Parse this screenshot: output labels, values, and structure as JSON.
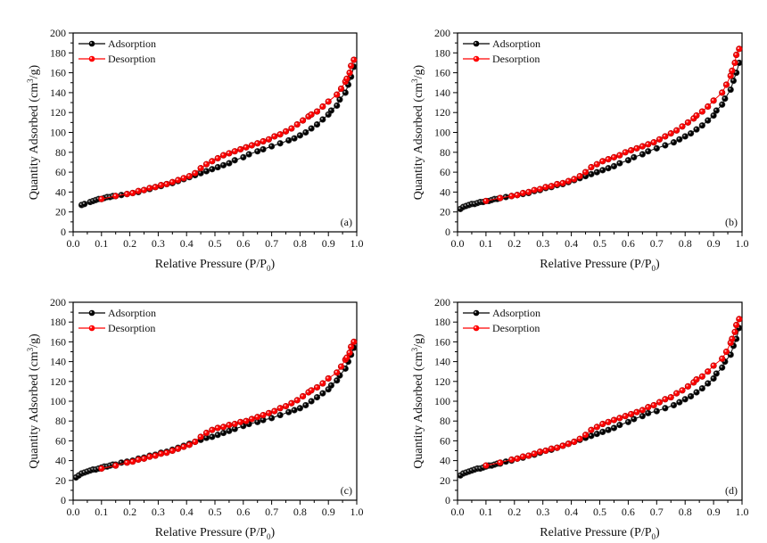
{
  "figure": {
    "panel_count": 4
  },
  "chart_data": [
    {
      "type": "line",
      "panel_label": "(a)",
      "title": "",
      "xlabel": "Relative Pressure (P/P0)",
      "xlabel_main": "Relative Pressure (P/P",
      "xlabel_sub": "0",
      "xlabel_end": ")",
      "ylabel": "Quantity Adsorbed (cm3/g)",
      "ylabel_main": "Quantity Adsorbed (cm",
      "ylabel_sup": "3",
      "ylabel_end": "/g)",
      "xlim": [
        0.0,
        1.0
      ],
      "ylim": [
        0,
        200
      ],
      "xticks": [
        "0.0",
        "0.1",
        "0.2",
        "0.3",
        "0.4",
        "0.5",
        "0.6",
        "0.7",
        "0.8",
        "0.9",
        "1.0"
      ],
      "yticks": [
        "0",
        "20",
        "40",
        "60",
        "80",
        "100",
        "120",
        "140",
        "160",
        "180",
        "200"
      ],
      "grid": false,
      "legend_position": "top-left",
      "series": [
        {
          "name": "Adsorption",
          "color": "#000000",
          "x": [
            0.03,
            0.04,
            0.06,
            0.07,
            0.08,
            0.09,
            0.1,
            0.11,
            0.12,
            0.13,
            0.14,
            0.15,
            0.17,
            0.19,
            0.21,
            0.23,
            0.25,
            0.27,
            0.29,
            0.31,
            0.33,
            0.35,
            0.37,
            0.39,
            0.41,
            0.43,
            0.45,
            0.47,
            0.49,
            0.51,
            0.53,
            0.55,
            0.57,
            0.6,
            0.62,
            0.65,
            0.67,
            0.7,
            0.73,
            0.76,
            0.78,
            0.8,
            0.82,
            0.84,
            0.86,
            0.88,
            0.9,
            0.91,
            0.93,
            0.94,
            0.96,
            0.97,
            0.98,
            0.99
          ],
          "y": [
            27,
            28,
            30,
            31,
            32,
            33,
            33,
            34,
            35,
            35,
            36,
            36,
            37,
            38,
            39,
            40,
            42,
            43,
            45,
            46,
            48,
            49,
            51,
            53,
            55,
            57,
            59,
            61,
            63,
            65,
            67,
            69,
            72,
            75,
            78,
            81,
            83,
            86,
            89,
            92,
            94,
            97,
            100,
            104,
            108,
            113,
            118,
            122,
            127,
            133,
            140,
            148,
            156,
            166
          ]
        },
        {
          "name": "Desorption",
          "color": "#ff0000",
          "x": [
            0.1,
            0.15,
            0.19,
            0.21,
            0.23,
            0.25,
            0.27,
            0.29,
            0.31,
            0.33,
            0.35,
            0.37,
            0.39,
            0.41,
            0.43,
            0.45,
            0.47,
            0.49,
            0.51,
            0.53,
            0.55,
            0.57,
            0.59,
            0.61,
            0.63,
            0.65,
            0.67,
            0.69,
            0.71,
            0.73,
            0.75,
            0.77,
            0.79,
            0.81,
            0.83,
            0.84,
            0.86,
            0.88,
            0.9,
            0.93,
            0.945,
            0.96,
            0.965,
            0.975,
            0.98,
            0.99
          ],
          "y": [
            33,
            36,
            38,
            39,
            41,
            42,
            44,
            45,
            47,
            48,
            50,
            52,
            54,
            56,
            59,
            64,
            68,
            71,
            74,
            77,
            79,
            81,
            83,
            85,
            87,
            89,
            91,
            93,
            96,
            98,
            101,
            104,
            108,
            112,
            116,
            118,
            121,
            126,
            131,
            138,
            144,
            151,
            154,
            160,
            167,
            173
          ]
        }
      ]
    },
    {
      "type": "line",
      "panel_label": "(b)",
      "title": "",
      "xlabel": "Relative Pressure (P/P0)",
      "xlabel_main": "Relative Pressure (P/P",
      "xlabel_sub": "0",
      "xlabel_end": ")",
      "ylabel": "Quantity Adsorbed (cm3/g)",
      "ylabel_main": "Quantity Adsorbed (cm",
      "ylabel_sup": "3",
      "ylabel_end": "/g)",
      "xlim": [
        0.0,
        1.0
      ],
      "ylim": [
        0,
        200
      ],
      "xticks": [
        "0.0",
        "0.1",
        "0.2",
        "0.3",
        "0.4",
        "0.5",
        "0.6",
        "0.7",
        "0.8",
        "0.9",
        "1.0"
      ],
      "yticks": [
        "0",
        "20",
        "40",
        "60",
        "80",
        "100",
        "120",
        "140",
        "160",
        "180",
        "200"
      ],
      "grid": false,
      "legend_position": "top-left",
      "series": [
        {
          "name": "Adsorption",
          "color": "#000000",
          "x": [
            0.01,
            0.02,
            0.03,
            0.04,
            0.05,
            0.06,
            0.07,
            0.08,
            0.09,
            0.1,
            0.11,
            0.12,
            0.13,
            0.14,
            0.15,
            0.17,
            0.19,
            0.21,
            0.23,
            0.25,
            0.27,
            0.29,
            0.31,
            0.33,
            0.35,
            0.37,
            0.39,
            0.41,
            0.43,
            0.45,
            0.47,
            0.49,
            0.51,
            0.53,
            0.55,
            0.57,
            0.6,
            0.62,
            0.65,
            0.67,
            0.7,
            0.73,
            0.76,
            0.78,
            0.8,
            0.82,
            0.84,
            0.86,
            0.88,
            0.9,
            0.91,
            0.93,
            0.94,
            0.96,
            0.97,
            0.98,
            0.99
          ],
          "y": [
            23,
            25,
            26,
            27,
            28,
            28,
            29,
            30,
            30,
            31,
            31,
            32,
            33,
            33,
            34,
            35,
            36,
            37,
            38,
            39,
            41,
            42,
            44,
            45,
            47,
            48,
            50,
            52,
            54,
            56,
            58,
            60,
            62,
            64,
            66,
            69,
            72,
            75,
            78,
            81,
            84,
            87,
            90,
            93,
            96,
            99,
            103,
            107,
            112,
            117,
            122,
            128,
            134,
            143,
            152,
            160,
            170
          ]
        },
        {
          "name": "Desorption",
          "color": "#ff0000",
          "x": [
            0.1,
            0.15,
            0.19,
            0.21,
            0.23,
            0.25,
            0.27,
            0.29,
            0.31,
            0.33,
            0.35,
            0.37,
            0.39,
            0.41,
            0.43,
            0.45,
            0.47,
            0.49,
            0.51,
            0.53,
            0.55,
            0.57,
            0.59,
            0.61,
            0.63,
            0.65,
            0.67,
            0.69,
            0.71,
            0.73,
            0.75,
            0.77,
            0.79,
            0.81,
            0.83,
            0.84,
            0.86,
            0.88,
            0.9,
            0.93,
            0.945,
            0.96,
            0.965,
            0.975,
            0.98,
            0.99
          ],
          "y": [
            31,
            34,
            36,
            37,
            39,
            40,
            42,
            43,
            45,
            46,
            48,
            49,
            51,
            53,
            56,
            60,
            65,
            68,
            71,
            73,
            75,
            77,
            80,
            82,
            84,
            86,
            88,
            90,
            93,
            96,
            99,
            102,
            106,
            110,
            114,
            117,
            121,
            126,
            132,
            140,
            148,
            157,
            162,
            170,
            178,
            184
          ]
        }
      ]
    },
    {
      "type": "line",
      "panel_label": "(c)",
      "title": "",
      "xlabel": "Relative Pressure (P/P0)",
      "xlabel_main": "Relative Pressure (P/P",
      "xlabel_sub": "0",
      "xlabel_end": ")",
      "ylabel": "Quantity Adsorbed (cm3/g)",
      "ylabel_main": "Quantity Adsorbed (cm",
      "ylabel_sup": "3",
      "ylabel_end": "/g)",
      "xlim": [
        0.0,
        1.0
      ],
      "ylim": [
        0,
        200
      ],
      "xticks": [
        "0.0",
        "0.1",
        "0.2",
        "0.3",
        "0.4",
        "0.5",
        "0.6",
        "0.7",
        "0.8",
        "0.9",
        "1.0"
      ],
      "yticks": [
        "0",
        "20",
        "40",
        "60",
        "80",
        "100",
        "120",
        "140",
        "160",
        "180",
        "200"
      ],
      "grid": false,
      "legend_position": "top-left",
      "series": [
        {
          "name": "Adsorption",
          "color": "#000000",
          "x": [
            0.01,
            0.02,
            0.03,
            0.04,
            0.05,
            0.06,
            0.07,
            0.08,
            0.09,
            0.1,
            0.11,
            0.12,
            0.13,
            0.14,
            0.15,
            0.17,
            0.19,
            0.21,
            0.23,
            0.25,
            0.27,
            0.29,
            0.31,
            0.33,
            0.35,
            0.37,
            0.39,
            0.41,
            0.43,
            0.45,
            0.47,
            0.49,
            0.51,
            0.53,
            0.55,
            0.57,
            0.6,
            0.62,
            0.65,
            0.67,
            0.7,
            0.73,
            0.76,
            0.78,
            0.8,
            0.82,
            0.84,
            0.86,
            0.88,
            0.9,
            0.91,
            0.93,
            0.94,
            0.96,
            0.97,
            0.98,
            0.99
          ],
          "y": [
            23,
            25,
            27,
            28,
            29,
            30,
            31,
            31,
            32,
            33,
            34,
            34,
            35,
            36,
            36,
            38,
            39,
            40,
            42,
            43,
            45,
            46,
            48,
            49,
            51,
            53,
            55,
            57,
            59,
            61,
            63,
            64,
            66,
            68,
            70,
            72,
            75,
            77,
            79,
            81,
            83,
            86,
            89,
            91,
            93,
            96,
            100,
            104,
            108,
            112,
            116,
            121,
            126,
            133,
            140,
            147,
            154
          ]
        },
        {
          "name": "Desorption",
          "color": "#ff0000",
          "x": [
            0.1,
            0.15,
            0.19,
            0.21,
            0.23,
            0.25,
            0.27,
            0.29,
            0.31,
            0.33,
            0.35,
            0.37,
            0.39,
            0.41,
            0.43,
            0.45,
            0.47,
            0.49,
            0.51,
            0.53,
            0.55,
            0.57,
            0.59,
            0.61,
            0.63,
            0.65,
            0.67,
            0.69,
            0.71,
            0.73,
            0.75,
            0.77,
            0.79,
            0.81,
            0.83,
            0.84,
            0.86,
            0.88,
            0.9,
            0.93,
            0.945,
            0.96,
            0.965,
            0.975,
            0.98,
            0.99
          ],
          "y": [
            32,
            35,
            38,
            39,
            41,
            42,
            44,
            45,
            47,
            48,
            50,
            52,
            54,
            56,
            59,
            64,
            68,
            71,
            73,
            74,
            76,
            77,
            79,
            80,
            82,
            84,
            86,
            88,
            90,
            93,
            95,
            98,
            101,
            105,
            109,
            111,
            114,
            118,
            123,
            129,
            135,
            142,
            144,
            149,
            155,
            160
          ]
        }
      ]
    },
    {
      "type": "line",
      "panel_label": "(d)",
      "title": "",
      "xlabel": "Relative Pressure (P/P0)",
      "xlabel_main": "Relative Pressure (P/P",
      "xlabel_sub": "0",
      "xlabel_end": ")",
      "ylabel": "Quantity Adsorbed (cm3/g)",
      "ylabel_main": "Quantity Adsorbed (cm",
      "ylabel_sup": "3",
      "ylabel_end": "/g)",
      "xlim": [
        0.0,
        1.0
      ],
      "ylim": [
        0,
        200
      ],
      "xticks": [
        "0.0",
        "0.1",
        "0.2",
        "0.3",
        "0.4",
        "0.5",
        "0.6",
        "0.7",
        "0.8",
        "0.9",
        "1.0"
      ],
      "yticks": [
        "0",
        "20",
        "40",
        "60",
        "80",
        "100",
        "120",
        "140",
        "160",
        "180",
        "200"
      ],
      "grid": false,
      "legend_position": "top-left",
      "series": [
        {
          "name": "Adsorption",
          "color": "#000000",
          "x": [
            0.01,
            0.02,
            0.03,
            0.04,
            0.05,
            0.06,
            0.07,
            0.08,
            0.09,
            0.1,
            0.11,
            0.12,
            0.13,
            0.14,
            0.15,
            0.17,
            0.19,
            0.21,
            0.23,
            0.25,
            0.27,
            0.29,
            0.31,
            0.33,
            0.35,
            0.37,
            0.39,
            0.41,
            0.43,
            0.45,
            0.47,
            0.49,
            0.51,
            0.53,
            0.55,
            0.57,
            0.6,
            0.62,
            0.65,
            0.67,
            0.7,
            0.73,
            0.76,
            0.78,
            0.8,
            0.82,
            0.84,
            0.86,
            0.88,
            0.9,
            0.91,
            0.93,
            0.94,
            0.96,
            0.97,
            0.98,
            0.99
          ],
          "y": [
            25,
            27,
            28,
            29,
            30,
            31,
            32,
            32,
            33,
            34,
            35,
            35,
            36,
            37,
            37,
            39,
            40,
            42,
            43,
            45,
            46,
            48,
            50,
            51,
            53,
            55,
            57,
            59,
            61,
            63,
            65,
            67,
            69,
            71,
            73,
            76,
            79,
            82,
            85,
            88,
            90,
            93,
            96,
            99,
            102,
            105,
            109,
            113,
            118,
            123,
            128,
            134,
            140,
            147,
            156,
            163,
            174
          ]
        },
        {
          "name": "Desorption",
          "color": "#ff0000",
          "x": [
            0.1,
            0.15,
            0.19,
            0.21,
            0.23,
            0.25,
            0.27,
            0.29,
            0.31,
            0.33,
            0.35,
            0.37,
            0.39,
            0.41,
            0.43,
            0.45,
            0.47,
            0.49,
            0.51,
            0.53,
            0.55,
            0.57,
            0.59,
            0.61,
            0.63,
            0.65,
            0.67,
            0.69,
            0.71,
            0.73,
            0.75,
            0.77,
            0.79,
            0.81,
            0.83,
            0.84,
            0.86,
            0.88,
            0.9,
            0.93,
            0.945,
            0.96,
            0.965,
            0.975,
            0.98,
            0.99
          ],
          "y": [
            35,
            38,
            41,
            42,
            44,
            45,
            47,
            49,
            50,
            52,
            53,
            55,
            57,
            59,
            62,
            66,
            71,
            74,
            77,
            79,
            81,
            83,
            85,
            87,
            89,
            91,
            94,
            96,
            99,
            102,
            104,
            108,
            111,
            115,
            119,
            122,
            125,
            130,
            136,
            143,
            150,
            159,
            163,
            170,
            177,
            183
          ]
        }
      ]
    }
  ]
}
